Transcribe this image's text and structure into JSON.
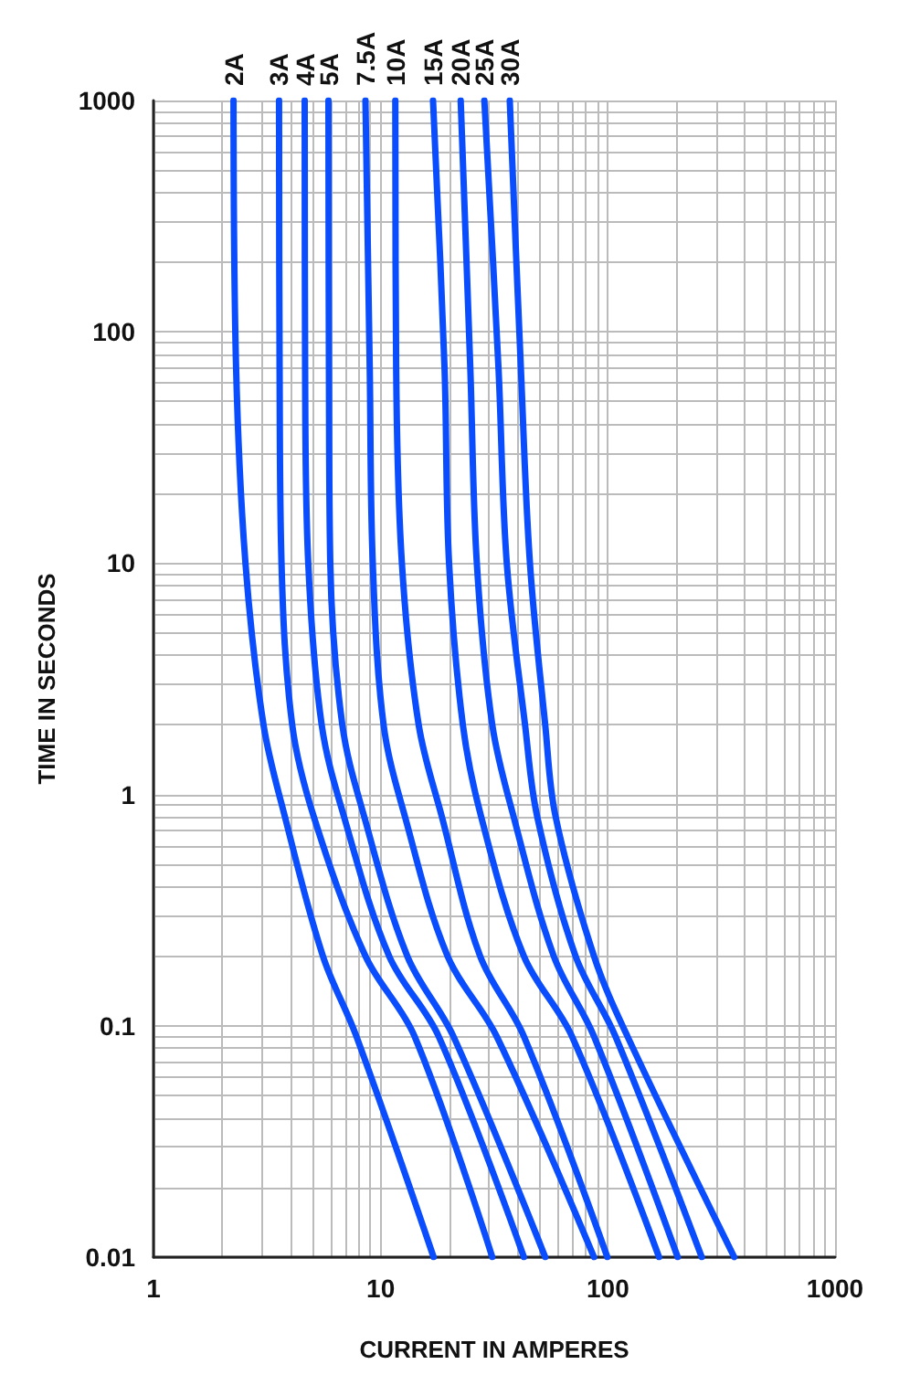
{
  "chart_data": {
    "type": "line",
    "xlabel": "CURRENT IN AMPERES",
    "ylabel": "TIME IN SECONDS",
    "log": "xy",
    "grid": true,
    "legend": false,
    "marker": "none",
    "line_style": "solid",
    "xlim": [
      1,
      1000
    ],
    "xticks": [
      1,
      {
        "value": 2,
        "label": null
      },
      {
        "value": 3,
        "label": null
      },
      {
        "value": 4,
        "label": null
      },
      {
        "value": 5,
        "label": null
      },
      {
        "value": 6,
        "label": null
      },
      {
        "value": 7,
        "label": null
      },
      {
        "value": 8,
        "label": null
      },
      {
        "value": 9,
        "label": null
      },
      10,
      {
        "value": 20,
        "label": null
      },
      {
        "value": 30,
        "label": null
      },
      {
        "value": 40,
        "label": null
      },
      {
        "value": 50,
        "label": null
      },
      {
        "value": 60,
        "label": null
      },
      {
        "value": 70,
        "label": null
      },
      {
        "value": 80,
        "label": null
      },
      {
        "value": 90,
        "label": null
      },
      100,
      {
        "value": 200,
        "label": null
      },
      {
        "value": 300,
        "label": null
      },
      {
        "value": 400,
        "label": null
      },
      {
        "value": 500,
        "label": null
      },
      {
        "value": 600,
        "label": null
      },
      {
        "value": 700,
        "label": null
      },
      {
        "value": 800,
        "label": null
      },
      {
        "value": 900,
        "label": null
      },
      1000
    ],
    "ylim": [
      0.01,
      1000
    ],
    "yticks": [
      0.01,
      {
        "value": 0.02,
        "label": null
      },
      {
        "value": 0.03,
        "label": null
      },
      {
        "value": 0.04,
        "label": null
      },
      {
        "value": 0.05,
        "label": null
      },
      {
        "value": 0.06,
        "label": null
      },
      {
        "value": 0.07,
        "label": null
      },
      {
        "value": 0.08,
        "label": null
      },
      {
        "value": 0.09,
        "label": null
      },
      0.1,
      {
        "value": 0.2,
        "label": null
      },
      {
        "value": 0.3,
        "label": null
      },
      {
        "value": 0.4,
        "label": null
      },
      {
        "value": 0.5,
        "label": null
      },
      {
        "value": 0.6,
        "label": null
      },
      {
        "value": 0.7,
        "label": null
      },
      {
        "value": 0.8,
        "label": null
      },
      {
        "value": 0.9,
        "label": null
      },
      1,
      {
        "value": 2,
        "label": null
      },
      {
        "value": 3,
        "label": null
      },
      {
        "value": 4,
        "label": null
      },
      {
        "value": 5,
        "label": null
      },
      {
        "value": 6,
        "label": null
      },
      {
        "value": 7,
        "label": null
      },
      {
        "value": 8,
        "label": null
      },
      {
        "value": 9,
        "label": null
      },
      10,
      {
        "value": 20,
        "label": null
      },
      {
        "value": 30,
        "label": null
      },
      {
        "value": 40,
        "label": null
      },
      {
        "value": 50,
        "label": null
      },
      {
        "value": 60,
        "label": null
      },
      {
        "value": 70,
        "label": null
      },
      {
        "value": 80,
        "label": null
      },
      {
        "value": 90,
        "label": null
      },
      100,
      {
        "value": 200,
        "label": null
      },
      {
        "value": 300,
        "label": null
      },
      {
        "value": 400,
        "label": null
      },
      {
        "value": 500,
        "label": null
      },
      {
        "value": 600,
        "label": null
      },
      {
        "value": 700,
        "label": null
      },
      {
        "value": 800,
        "label": null
      },
      {
        "value": 900,
        "label": null
      },
      1000
    ],
    "series": [
      {
        "name": "2A",
        "color": "#0a4dff",
        "x": [
          2.25,
          2.31,
          2.54,
          3.05,
          3.79,
          5.57,
          7.82,
          17.1
        ],
        "values": [
          1000,
          70,
          10,
          2,
          0.8,
          0.2,
          0.09,
          0.01
        ]
      },
      {
        "name": "3A",
        "color": "#0a4dff",
        "x": [
          3.57,
          3.59,
          3.66,
          4.08,
          5.08,
          8.57,
          14.1,
          31.0
        ],
        "values": [
          1000,
          70,
          10,
          2,
          0.8,
          0.2,
          0.09,
          0.01
        ]
      },
      {
        "name": "4A",
        "color": "#0a4dff",
        "x": [
          4.63,
          4.65,
          4.8,
          5.5,
          6.9,
          10.9,
          18.0,
          42.7
        ],
        "values": [
          1000,
          70,
          10,
          2,
          0.8,
          0.2,
          0.09,
          0.01
        ]
      },
      {
        "name": "5A",
        "color": "#0a4dff",
        "x": [
          5.89,
          5.92,
          6.0,
          6.78,
          8.47,
          13.1,
          20.9,
          53.0
        ],
        "values": [
          1000,
          70,
          10,
          2,
          0.8,
          0.2,
          0.09,
          0.01
        ]
      },
      {
        "name": "7.5A",
        "color": "#0a4dff",
        "x": [
          8.57,
          8.95,
          9.23,
          10.3,
          12.8,
          19.7,
          32.4,
          86.9
        ],
        "values": [
          1000,
          70,
          10,
          2,
          0.8,
          0.2,
          0.09,
          0.01
        ]
      },
      {
        "name": "10A",
        "color": "#0a4dff",
        "x": [
          11.6,
          11.7,
          12.4,
          14.7,
          18.6,
          27.4,
          42.7,
          99.5
        ],
        "values": [
          1000,
          70,
          10,
          2,
          0.8,
          0.2,
          0.09,
          0.01
        ]
      },
      {
        "name": "15A",
        "color": "#0a4dff",
        "x": [
          17.0,
          19.1,
          20.0,
          23.0,
          27.7,
          42.7,
          69.5,
          168
        ],
        "values": [
          1000,
          70,
          10,
          2,
          0.8,
          0.2,
          0.09,
          0.01
        ]
      },
      {
        "name": "20A",
        "color": "#0a4dff",
        "x": [
          22.5,
          24.8,
          26.5,
          31.0,
          38.5,
          57.8,
          86.9,
          203
        ],
        "values": [
          1000,
          70,
          10,
          2,
          0.8,
          0.2,
          0.09,
          0.01
        ]
      },
      {
        "name": "25A",
        "color": "#0a4dff",
        "x": [
          28.6,
          33.0,
          35.9,
          43.2,
          48.9,
          72.1,
          108,
          259
        ],
        "values": [
          1000,
          70,
          10,
          2,
          0.8,
          0.2,
          0.09,
          0.01
        ]
      },
      {
        "name": "30A",
        "color": "#0a4dff",
        "x": [
          37.0,
          41.4,
          45.4,
          53.0,
          58.9,
          86.9,
          122,
          360
        ],
        "values": [
          1000,
          70,
          10,
          2,
          0.8,
          0.2,
          0.09,
          0.01
        ]
      }
    ]
  }
}
